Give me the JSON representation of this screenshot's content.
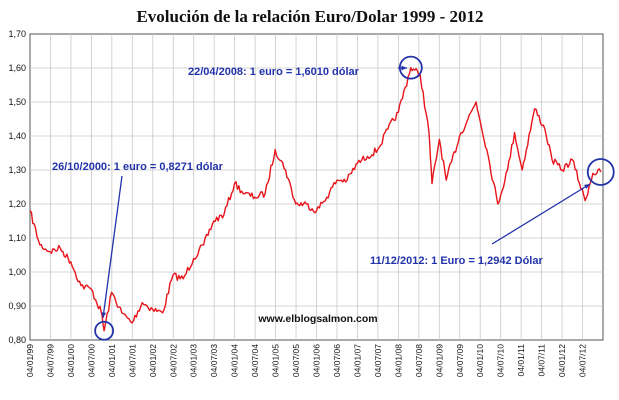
{
  "chart_data": {
    "type": "line",
    "title": "Evolución de la relación Euro/Dolar 1999 - 2012",
    "xlabel": "",
    "ylabel": "",
    "ylim": [
      0.8,
      1.7
    ],
    "y_ticks": [
      "1,70",
      "1,60",
      "1,50",
      "1,40",
      "1,30",
      "1,20",
      "1,10",
      "1,00",
      "0,90",
      "0,80"
    ],
    "x_ticks": [
      "04/01/99",
      "04/07/99",
      "04/01/00",
      "04/07/00",
      "04/01/01",
      "04/07/01",
      "04/01/02",
      "04/07/02",
      "04/01/03",
      "04/07/03",
      "04/01/04",
      "04/07/04",
      "04/01/05",
      "04/07/05",
      "04/01/06",
      "04/07/06",
      "04/01/07",
      "04/07/07",
      "04/01/08",
      "04/07/08",
      "04/01/09",
      "04/07/09",
      "04/01/10",
      "04/07/10",
      "04/01/11",
      "04/07/11",
      "04/01/12",
      "04/07/12"
    ],
    "grid": true,
    "line_color": "#e8141b",
    "series": [
      {
        "x": [
          "1999-01-04",
          "1999-04-01",
          "1999-07-01",
          "1999-10-01",
          "2000-01-03",
          "2000-04-03",
          "2000-07-03",
          "2000-10-02",
          "2000-10-26",
          "2001-01-02",
          "2001-04-02",
          "2001-07-02",
          "2001-10-01",
          "2002-01-02",
          "2002-04-01",
          "2002-07-01",
          "2002-10-01",
          "2003-01-02",
          "2003-04-01",
          "2003-07-01",
          "2003-10-01",
          "2004-01-02",
          "2004-04-01",
          "2004-07-01",
          "2004-10-01",
          "2004-12-30",
          "2005-04-01",
          "2005-07-01",
          "2005-10-03",
          "2006-01-02",
          "2006-04-03",
          "2006-07-03",
          "2006-10-02",
          "2007-01-02",
          "2007-04-02",
          "2007-07-02",
          "2007-10-01",
          "2008-01-02",
          "2008-04-22",
          "2008-07-15",
          "2008-10-01",
          "2008-10-28",
          "2009-01-02",
          "2009-03-04",
          "2009-07-01",
          "2009-11-25",
          "2010-03-01",
          "2010-06-07",
          "2010-09-01",
          "2010-11-04",
          "2011-01-10",
          "2011-05-02",
          "2011-08-01",
          "2011-10-04",
          "2012-01-02",
          "2012-04-02",
          "2012-07-24",
          "2012-10-01",
          "2012-12-11"
        ],
        "y": [
          1.18,
          1.08,
          1.06,
          1.07,
          1.03,
          0.96,
          0.95,
          0.88,
          0.8271,
          0.94,
          0.88,
          0.85,
          0.91,
          0.89,
          0.88,
          0.99,
          0.98,
          1.04,
          1.08,
          1.15,
          1.17,
          1.26,
          1.23,
          1.22,
          1.23,
          1.36,
          1.3,
          1.2,
          1.2,
          1.18,
          1.22,
          1.27,
          1.27,
          1.32,
          1.34,
          1.36,
          1.42,
          1.47,
          1.601,
          1.58,
          1.41,
          1.26,
          1.39,
          1.27,
          1.4,
          1.5,
          1.36,
          1.2,
          1.3,
          1.41,
          1.3,
          1.48,
          1.42,
          1.33,
          1.3,
          1.33,
          1.21,
          1.29,
          1.2942
        ]
      }
    ],
    "annotations": [
      {
        "text": "26/10/2000: 1 euro = 0,8271 dólar",
        "x": "2000-10-26",
        "y": 0.8271
      },
      {
        "text": "22/04/2008: 1 euro = 1,6010 dólar",
        "x": "2008-04-22",
        "y": 1.601
      },
      {
        "text": "11/12/2012: 1 Euro = 1,2942 Dólar",
        "x": "2012-12-11",
        "y": 1.2942
      }
    ],
    "watermark": "www.elblogsalmon.com"
  }
}
